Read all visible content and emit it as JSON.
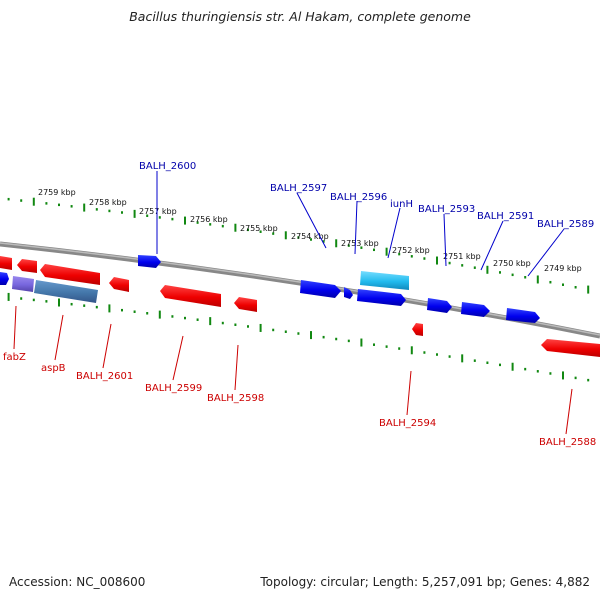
{
  "title": "Bacillus thuringiensis str. Al Hakam, complete genome",
  "footer": {
    "accession": "Accession: NC_008600",
    "summary": "Topology: circular; Length: 5,257,091 bp; Genes: 4,882"
  },
  "colors": {
    "forward_gene": "#0000ee",
    "reverse_gene": "#ee0000",
    "highlight_gene": "#22bbee",
    "alt_gene_purple": "#7766dd",
    "alt_gene_steel": "#4477aa",
    "scale_ticks": "#118811",
    "backbone": "#888888",
    "forward_label": "#0000aa",
    "reverse_label": "#cc0000"
  },
  "scale_labels": [
    "2759 kbp",
    "2758 kbp",
    "2757 kbp",
    "2756 kbp",
    "2755 kbp",
    "2754 kbp",
    "2753 kbp",
    "2752 kbp",
    "2751 kbp",
    "2750 kbp",
    "2749 kbp"
  ],
  "forward_gene_labels": [
    "BALH_2600",
    "BALH_2597",
    "BALH_2596",
    "iunH",
    "BALH_2593",
    "BALH_2591",
    "BALH_2589"
  ],
  "reverse_gene_labels": [
    "fabZ",
    "aspB",
    "BALH_2601",
    "BALH_2599",
    "BALH_2598",
    "BALH_2594",
    "BALH_2588"
  ]
}
